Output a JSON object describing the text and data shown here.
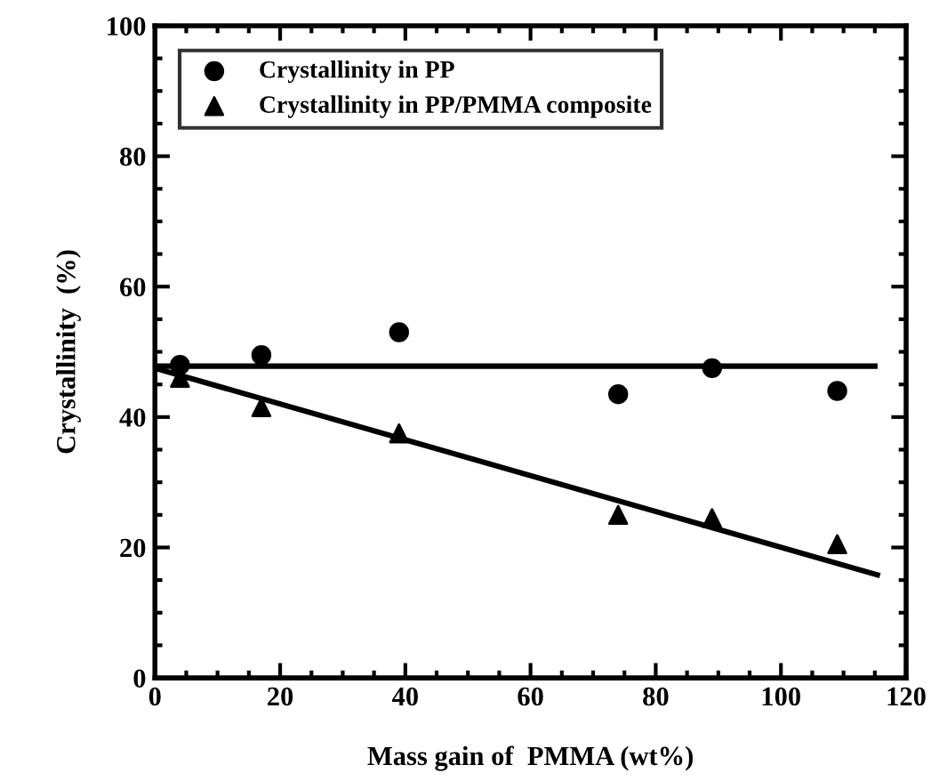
{
  "chart_data": {
    "type": "scatter",
    "xlabel": "Mass gain of  PMMA (wt%)",
    "ylabel": "Crystallinity  (%)",
    "xlim": [
      0,
      120
    ],
    "ylim": [
      0,
      100
    ],
    "xticks": [
      0,
      20,
      40,
      60,
      80,
      100,
      120
    ],
    "yticks": [
      0,
      20,
      40,
      60,
      80,
      100
    ],
    "legend": "top left",
    "grid": false,
    "series": [
      {
        "name": "Crystallinity in PP",
        "color": "#000000",
        "marker": "circle",
        "x": [
          4,
          17,
          39,
          74,
          89,
          109
        ],
        "values": [
          48,
          49.5,
          53,
          43.5,
          47.5,
          44
        ]
      },
      {
        "name": "Crystallinity in PP/PMMA composite",
        "color": "#000000",
        "marker": "triangle",
        "x": [
          4,
          17,
          39,
          74,
          89,
          109
        ],
        "values": [
          46,
          41.5,
          37.5,
          25,
          24.5,
          20.5
        ]
      },
      {
        "type": "line",
        "color": "#000000",
        "marker": "none",
        "x": [
          0,
          115
        ],
        "values": [
          47.8,
          47.8
        ]
      },
      {
        "type": "line",
        "color": "#000000",
        "marker": "none",
        "x": [
          0,
          115.4
        ],
        "values": [
          47.5,
          15.8
        ]
      }
    ]
  }
}
